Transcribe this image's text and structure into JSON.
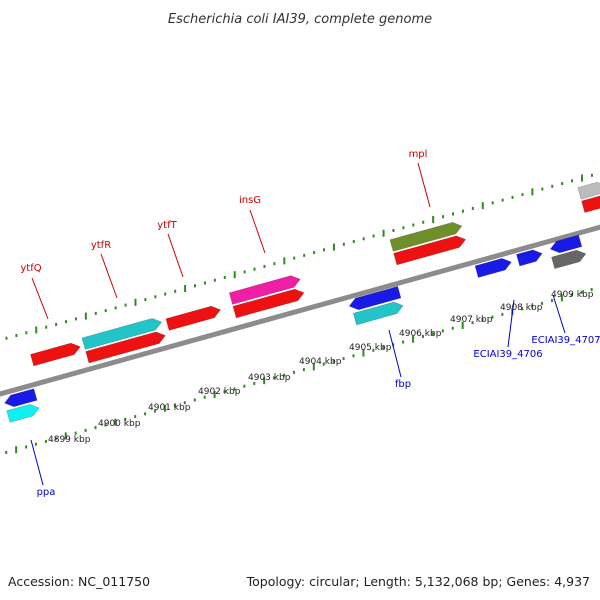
{
  "title": "Escherichia coli IAI39, complete genome",
  "footer": {
    "accession": "Accession: NC_011750",
    "summary": "Topology: circular; Length: 5,132,068 bp; Genes: 4,937"
  },
  "colors": {
    "backbone": "#8c8c8c",
    "tick_top": "#2e8b1e",
    "tick_bottom": "#2e8b1e",
    "label_top": "#cc0000",
    "label_bottom": "#0000cc",
    "red": "#ee1111",
    "cyan": "#22c4c8",
    "bright_cyan": "#10f0f0",
    "blue": "#1a1ae6",
    "magenta": "#ee1fa4",
    "olive": "#6f8f2a",
    "gray": "#666666",
    "light_gray": "#bcbcbc"
  },
  "tick_labels": [
    "4899 kbp",
    "4900 kbp",
    "4901 kbp",
    "4902 kbp",
    "4903 kbp",
    "4904 kbp",
    "4905 kbp",
    "4906 kbp",
    "4907 kbp",
    "4908 kbp",
    "4909 kbp"
  ],
  "gene_labels_top": [
    "ytfQ",
    "ytfR",
    "ytfT",
    "insG",
    "mpl"
  ],
  "gene_labels_bottom": [
    "ppa",
    "fbp",
    "ECIAI39_4706",
    "ECIAI39_4707"
  ]
}
